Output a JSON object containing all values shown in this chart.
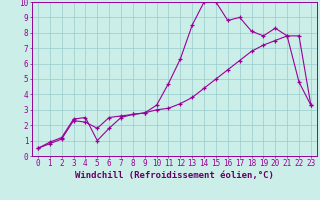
{
  "bg_color": "#cceee8",
  "grid_color": "#99cccc",
  "line_color": "#990099",
  "xlabel": "Windchill (Refroidissement éolien,°C)",
  "xlabel_color": "#660066",
  "ylabel_yticks": [
    0,
    1,
    2,
    3,
    4,
    5,
    6,
    7,
    8,
    9,
    10
  ],
  "xticks": [
    0,
    1,
    2,
    3,
    4,
    5,
    6,
    7,
    8,
    9,
    10,
    11,
    12,
    13,
    14,
    15,
    16,
    17,
    18,
    19,
    20,
    21,
    22,
    23
  ],
  "xlim": [
    -0.5,
    23.5
  ],
  "ylim": [
    0,
    10
  ],
  "series1_x": [
    0,
    1,
    2,
    3,
    4,
    5,
    6,
    7,
    8,
    9,
    10,
    11,
    12,
    13,
    14,
    15,
    16,
    17,
    18,
    19,
    20,
    21,
    22,
    23
  ],
  "series1_y": [
    0.5,
    0.9,
    1.2,
    2.4,
    2.5,
    1.0,
    1.8,
    2.5,
    2.7,
    2.8,
    3.3,
    4.7,
    6.3,
    8.5,
    10.0,
    10.0,
    8.8,
    9.0,
    8.1,
    7.8,
    8.3,
    7.8,
    4.8,
    3.3
  ],
  "series2_x": [
    0,
    1,
    2,
    3,
    4,
    5,
    6,
    7,
    8,
    9,
    10,
    11,
    12,
    13,
    14,
    15,
    16,
    17,
    18,
    19,
    20,
    21,
    22,
    23
  ],
  "series2_y": [
    0.5,
    0.8,
    1.1,
    2.3,
    2.2,
    1.8,
    2.5,
    2.6,
    2.7,
    2.8,
    3.0,
    3.1,
    3.4,
    3.8,
    4.4,
    5.0,
    5.6,
    6.2,
    6.8,
    7.2,
    7.5,
    7.8,
    7.8,
    3.3
  ],
  "tick_fontsize": 5.5,
  "xlabel_fontsize": 6.5
}
